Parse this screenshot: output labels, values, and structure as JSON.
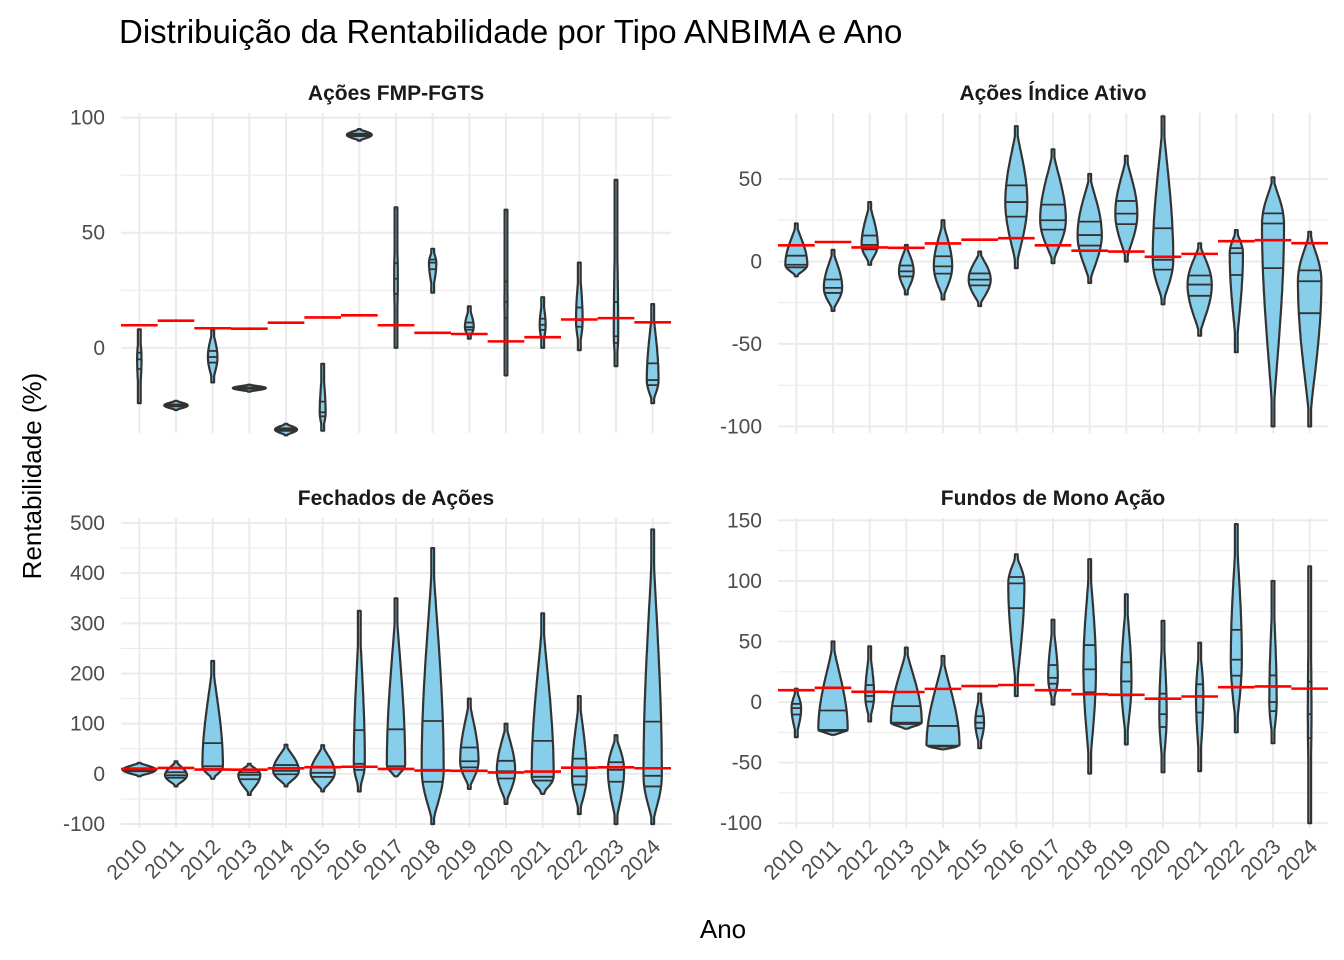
{
  "title": "Distribuição da Rentabilidade por Tipo ANBIMA e Ano",
  "xlabel": "Ano",
  "ylabel": "Rentabilidade (%)",
  "colors": {
    "violin_fill": "#87CEEB",
    "violin_stroke": "#333333",
    "mean_line": "#FF0000",
    "grid": "#EBEBEB"
  },
  "chart_data": {
    "type": "violin",
    "categories": [
      "2010",
      "2011",
      "2012",
      "2013",
      "2014",
      "2015",
      "2016",
      "2017",
      "2018",
      "2019",
      "2020",
      "2021",
      "2022",
      "2023",
      "2024"
    ],
    "panels": [
      {
        "name": "Ações FMP-FGTS",
        "y_ticks": [
          0,
          50,
          100
        ],
        "ylim": [
          -37,
          102
        ],
        "violins": [
          {
            "min": -24,
            "max": 8,
            "median": -5,
            "hw": 0.06
          },
          {
            "min": -27,
            "max": -23,
            "median": -25,
            "hw": 0.32
          },
          {
            "min": -15,
            "max": 8,
            "median": -4,
            "hw": 0.13
          },
          {
            "min": -19,
            "max": -16,
            "median": -17.5,
            "hw": 0.45
          },
          {
            "min": -38,
            "max": -33,
            "median": -35.5,
            "hw": 0.3
          },
          {
            "min": -36,
            "max": -7,
            "median": -28,
            "hw": 0.08
          },
          {
            "min": 90,
            "max": 95,
            "median": 92.5,
            "hw": 0.34
          },
          {
            "min": 0,
            "max": 61,
            "median": 30,
            "hw": 0.05
          },
          {
            "min": 24,
            "max": 43,
            "median": 37,
            "hw": 0.1
          },
          {
            "min": 4,
            "max": 18,
            "median": 9,
            "hw": 0.12
          },
          {
            "min": -12,
            "max": 60,
            "median": 20,
            "hw": 0.04
          },
          {
            "min": 0,
            "max": 22,
            "median": 10,
            "hw": 0.08
          },
          {
            "min": -1,
            "max": 37,
            "median": 12,
            "hw": 0.09
          },
          {
            "min": -8,
            "max": 73,
            "median": 5,
            "hw": 0.06
          },
          {
            "min": -24,
            "max": 19,
            "median": -14,
            "hw": 0.16
          }
        ],
        "means": [
          9.8,
          11.8,
          8.5,
          8.3,
          10.9,
          13.2,
          14.1,
          9.8,
          6.5,
          6.0,
          2.8,
          4.6,
          12.3,
          12.9,
          11.1
        ]
      },
      {
        "name": "Ações Índice Ativo",
        "y_ticks": [
          -100,
          -50,
          0,
          50
        ],
        "ylim": [
          -104,
          90
        ],
        "violins": [
          {
            "min": -9,
            "max": 23,
            "median": -2,
            "hw": 0.3
          },
          {
            "min": -30,
            "max": 7,
            "median": -16,
            "hw": 0.25
          },
          {
            "min": -2,
            "max": 36,
            "median": 10,
            "hw": 0.22
          },
          {
            "min": -20,
            "max": 10,
            "median": -6,
            "hw": 0.2
          },
          {
            "min": -23,
            "max": 25,
            "median": -3,
            "hw": 0.25
          },
          {
            "min": -27,
            "max": 6,
            "median": -11,
            "hw": 0.3
          },
          {
            "min": -4,
            "max": 82,
            "median": 36,
            "hw": 0.3
          },
          {
            "min": -1,
            "max": 68,
            "median": 25,
            "hw": 0.35
          },
          {
            "min": -13,
            "max": 53,
            "median": 16,
            "hw": 0.33
          },
          {
            "min": 0,
            "max": 64,
            "median": 29,
            "hw": 0.3
          },
          {
            "min": -26,
            "max": 88,
            "median": 1,
            "hw": 0.28
          },
          {
            "min": -45,
            "max": 11,
            "median": -14,
            "hw": 0.33
          },
          {
            "min": -55,
            "max": 19,
            "median": 5,
            "hw": 0.18
          },
          {
            "min": -100,
            "max": 51,
            "median": 23,
            "hw": 0.3
          },
          {
            "min": -100,
            "max": 18,
            "median": -12,
            "hw": 0.32
          }
        ],
        "means": [
          9.8,
          11.8,
          8.5,
          8.3,
          10.9,
          13.2,
          14.1,
          9.8,
          6.5,
          6.0,
          2.8,
          4.6,
          12.3,
          12.9,
          11.1
        ]
      },
      {
        "name": "Fechados de Ações",
        "y_ticks": [
          -100,
          0,
          100,
          200,
          300,
          400,
          500
        ],
        "ylim": [
          -108,
          510
        ],
        "violins": [
          {
            "min": -5,
            "max": 22,
            "median": 8,
            "hw": 0.45
          },
          {
            "min": -25,
            "max": 25,
            "median": -3,
            "hw": 0.3
          },
          {
            "min": -10,
            "max": 225,
            "median": 15,
            "hw": 0.28
          },
          {
            "min": -42,
            "max": 20,
            "median": -2,
            "hw": 0.3
          },
          {
            "min": -25,
            "max": 58,
            "median": 6,
            "hw": 0.35
          },
          {
            "min": -35,
            "max": 57,
            "median": 2,
            "hw": 0.33
          },
          {
            "min": -35,
            "max": 325,
            "median": 20,
            "hw": 0.15
          },
          {
            "min": -5,
            "max": 350,
            "median": 15,
            "hw": 0.25
          },
          {
            "min": -100,
            "max": 450,
            "median": 8,
            "hw": 0.3
          },
          {
            "min": -30,
            "max": 150,
            "median": 25,
            "hw": 0.25
          },
          {
            "min": -60,
            "max": 100,
            "median": 5,
            "hw": 0.25
          },
          {
            "min": -40,
            "max": 320,
            "median": -6,
            "hw": 0.3
          },
          {
            "min": -80,
            "max": 155,
            "median": -5,
            "hw": 0.2
          },
          {
            "min": -100,
            "max": 77,
            "median": 8,
            "hw": 0.22
          },
          {
            "min": -100,
            "max": 487,
            "median": -4,
            "hw": 0.25
          }
        ],
        "means": [
          9.8,
          11.8,
          8.5,
          8.3,
          10.9,
          13.2,
          14.1,
          9.8,
          6.5,
          6.0,
          2.8,
          4.6,
          12.3,
          12.9,
          11.1
        ]
      },
      {
        "name": "Fundos de Mono Ação",
        "y_ticks": [
          -100,
          -50,
          0,
          50,
          100,
          150
        ],
        "ylim": [
          -104,
          152
        ],
        "violins": [
          {
            "min": -29,
            "max": 11,
            "median": -5,
            "hw": 0.13
          },
          {
            "min": -27,
            "max": 50,
            "median": -23,
            "hw": 0.4
          },
          {
            "min": -16,
            "max": 46,
            "median": 5,
            "hw": 0.12
          },
          {
            "min": -22,
            "max": 45,
            "median": -17,
            "hw": 0.42
          },
          {
            "min": -39,
            "max": 38,
            "median": -36,
            "hw": 0.45
          },
          {
            "min": -38,
            "max": 7,
            "median": -17,
            "hw": 0.12
          },
          {
            "min": 5,
            "max": 122,
            "median": 98,
            "hw": 0.22
          },
          {
            "min": -2,
            "max": 68,
            "median": 20,
            "hw": 0.13
          },
          {
            "min": -59,
            "max": 118,
            "median": 27,
            "hw": 0.17
          },
          {
            "min": -35,
            "max": 89,
            "median": 17,
            "hw": 0.14
          },
          {
            "min": -58,
            "max": 67,
            "median": -10,
            "hw": 0.1
          },
          {
            "min": -57,
            "max": 49,
            "median": 5,
            "hw": 0.1
          },
          {
            "min": -25,
            "max": 147,
            "median": 35,
            "hw": 0.15
          },
          {
            "min": -34,
            "max": 100,
            "median": 0,
            "hw": 0.1
          },
          {
            "min": -100,
            "max": 112,
            "median": -10,
            "hw": 0.05
          }
        ],
        "means": [
          9.8,
          11.8,
          8.5,
          8.3,
          10.9,
          13.2,
          14.1,
          9.8,
          6.5,
          6.0,
          2.8,
          4.6,
          12.3,
          12.9,
          11.1
        ]
      }
    ]
  }
}
